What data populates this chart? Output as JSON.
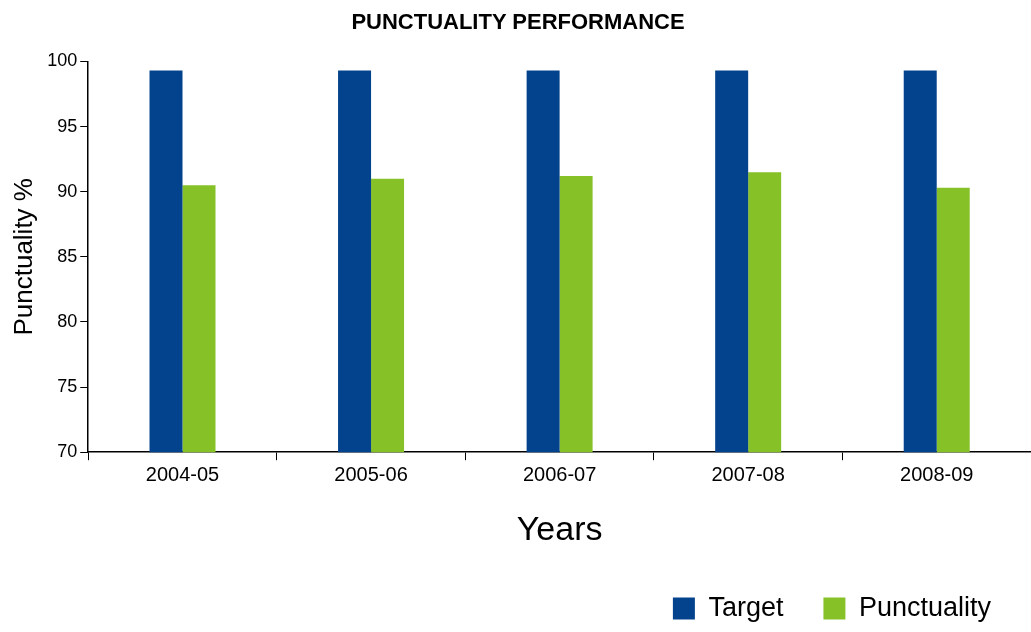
{
  "chart_data": {
    "type": "bar",
    "title": "PUNCTUALITY PERFORMANCE",
    "xlabel": "Years",
    "ylabel": "Punctuality %",
    "categories": [
      "2004-05",
      "2005-06",
      "2006-07",
      "2007-08",
      "2008-09"
    ],
    "series": [
      {
        "name": "Target",
        "color": "#03428c",
        "values": [
          99.3,
          99.3,
          99.3,
          99.3,
          99.3
        ]
      },
      {
        "name": "Punctuality",
        "color": "#86c128",
        "values": [
          90.5,
          91.0,
          91.2,
          91.5,
          90.3
        ]
      }
    ],
    "ylim": [
      70,
      100
    ],
    "yticks": [
      70,
      75,
      80,
      85,
      90,
      95,
      100
    ],
    "grid": false,
    "legend": "bottom right"
  }
}
